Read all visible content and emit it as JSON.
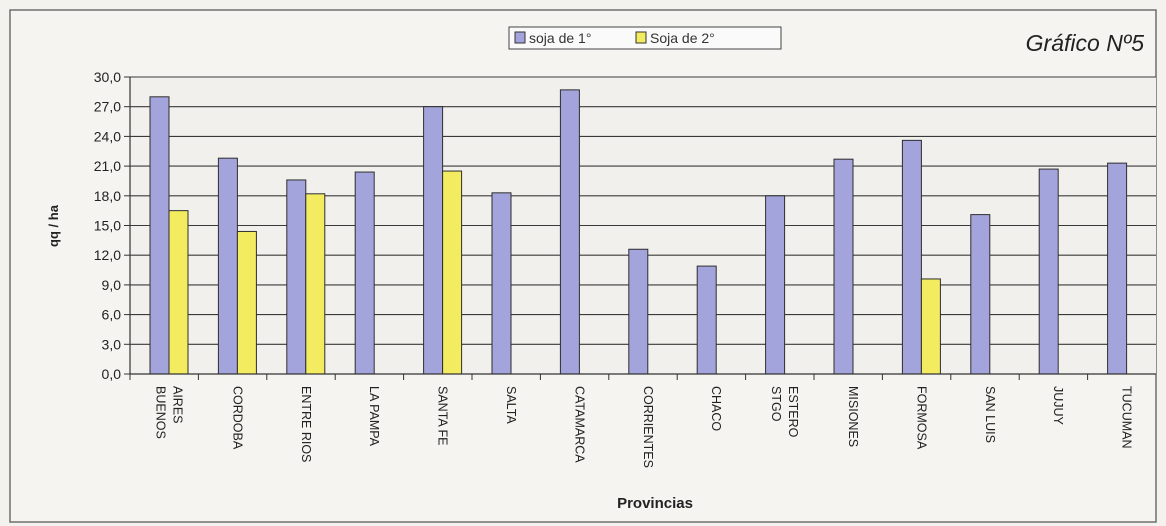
{
  "chart_data": {
    "type": "bar",
    "title": "Gráfico Nº5",
    "xlabel": "Provincias",
    "ylabel": "qq / ha",
    "ylim": [
      0,
      30
    ],
    "yticks": [
      "0,0",
      "3,0",
      "6,0",
      "9,0",
      "12,0",
      "15,0",
      "18,0",
      "21,0",
      "24,0",
      "27,0",
      "30,0"
    ],
    "grid": true,
    "legend_position": "top-center",
    "categories": [
      [
        "BUENOS",
        "AIRES"
      ],
      [
        "CORDOBA"
      ],
      [
        "ENTRE RIOS"
      ],
      [
        "LA PAMPA"
      ],
      [
        "SANTA FE"
      ],
      [
        "SALTA"
      ],
      [
        "CATAMARCA"
      ],
      [
        "CORRIENTES"
      ],
      [
        "CHACO"
      ],
      [
        "STGO",
        "ESTERO"
      ],
      [
        "MISIONES"
      ],
      [
        "FORMOSA"
      ],
      [
        "SAN LUIS"
      ],
      [
        "JUJUY"
      ],
      [
        "TUCUMAN"
      ]
    ],
    "series": [
      {
        "name": "soja de 1°",
        "color": "#a4a4dc",
        "values": [
          28.0,
          21.8,
          19.6,
          20.4,
          27.0,
          18.3,
          28.7,
          12.6,
          10.9,
          18.0,
          21.7,
          23.6,
          16.1,
          20.7,
          21.3
        ]
      },
      {
        "name": "Soja de 2°",
        "color": "#f4ec60",
        "values": [
          16.5,
          14.4,
          18.2,
          null,
          20.5,
          null,
          null,
          null,
          null,
          null,
          null,
          9.6,
          null,
          null,
          null
        ]
      }
    ]
  }
}
